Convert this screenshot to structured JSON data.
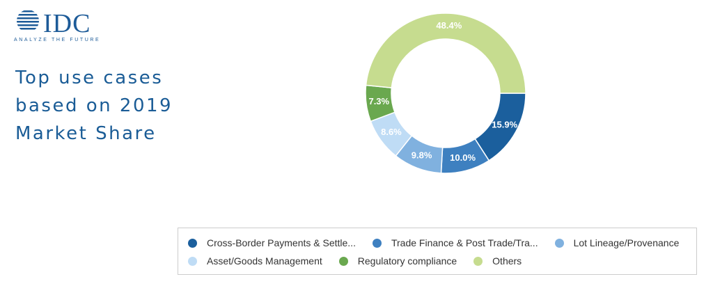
{
  "logo": {
    "name": "IDC",
    "tagline": "ANALYZE THE FUTURE"
  },
  "chart_data": {
    "type": "pie",
    "donut": true,
    "title": [
      "Top use cases",
      "based on 2019",
      "Market Share"
    ],
    "categories": [
      "Cross-Border Payments & Settle...",
      "Trade Finance & Post Trade/Tra...",
      "Lot Lineage/Provenance",
      "Asset/Goods Management",
      "Regulatory compliance",
      "Others"
    ],
    "values": [
      15.9,
      10.0,
      9.8,
      8.6,
      7.3,
      48.4
    ],
    "value_labels": [
      "15.9%",
      "10.0%",
      "9.8%",
      "8.6%",
      "7.3%",
      "48.4%"
    ],
    "colors": [
      "#1b5f9d",
      "#3e80c0",
      "#80b1df",
      "#bfdcf5",
      "#6aa84f",
      "#c6dc8f"
    ],
    "legend": "bottom"
  }
}
